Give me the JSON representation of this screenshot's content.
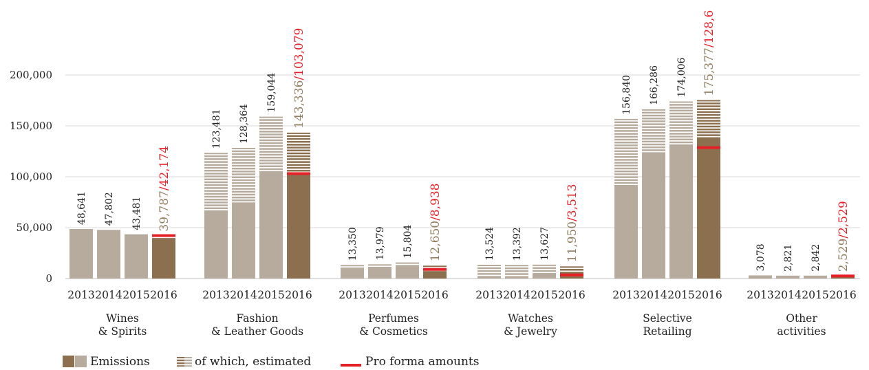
{
  "chart_data": {
    "type": "bar",
    "title": "",
    "xlabel": "",
    "ylabel": "",
    "ylim": [
      0,
      200000
    ],
    "yticks": [
      0,
      50000,
      100000,
      150000,
      200000
    ],
    "ytick_labels": [
      "0",
      "50,000",
      "100,000",
      "150,000",
      "200,000"
    ],
    "grid": true,
    "legend_position": "bottom-left",
    "years": [
      "2013",
      "2014",
      "2015",
      "2016"
    ],
    "groups": [
      {
        "name_lines": [
          "Wines",
          "& Spirits"
        ],
        "totals": [
          48641,
          47802,
          43481,
          39787
        ],
        "estimated": [
          0,
          0,
          0,
          0
        ],
        "labels": [
          "48,641",
          "47,802",
          "43,481"
        ],
        "label_2016_main": "39,787",
        "label_2016_proforma": "/42,174",
        "proforma_2016": 42174
      },
      {
        "name_lines": [
          "Fashion",
          "& Leather Goods"
        ],
        "totals": [
          123481,
          128364,
          159044,
          143336
        ],
        "estimated": [
          57000,
          54000,
          54000,
          39000
        ],
        "labels": [
          "123,481",
          "128,364",
          "159,044"
        ],
        "label_2016_main": "143,336",
        "label_2016_proforma": "/103,079",
        "proforma_2016": 103079
      },
      {
        "name_lines": [
          "Perfumes",
          "& Cosmetics"
        ],
        "totals": [
          13350,
          13979,
          15804,
          12650
        ],
        "estimated": [
          2500,
          3000,
          2000,
          5500
        ],
        "labels": [
          "13,350",
          "13,979",
          "15,804"
        ],
        "label_2016_main": "12,650",
        "label_2016_proforma": "/8,938",
        "proforma_2016": 8938
      },
      {
        "name_lines": [
          "Watches",
          "& Jewelry"
        ],
        "totals": [
          13524,
          13392,
          13627,
          11950
        ],
        "estimated": [
          10000,
          10000,
          9500,
          7000
        ],
        "labels": [
          "13,524",
          "13,392",
          "13,627"
        ],
        "label_2016_main": "11,950",
        "label_2016_proforma": "/3,513",
        "proforma_2016": 3513
      },
      {
        "name_lines": [
          "Selective",
          "Retailing"
        ],
        "totals": [
          156840,
          166286,
          174006,
          175377
        ],
        "estimated": [
          64000,
          43000,
          42000,
          36000
        ],
        "labels": [
          "156,840",
          "166,286",
          "174,006"
        ],
        "label_2016_main": "175,377",
        "label_2016_proforma": "/128,6",
        "proforma_2016": 128600
      },
      {
        "name_lines": [
          "Other",
          "activities"
        ],
        "totals": [
          3078,
          2821,
          2842,
          2529
        ],
        "estimated": [
          0,
          0,
          0,
          0
        ],
        "labels": [
          "3,078",
          "2,821",
          "2,842"
        ],
        "label_2016_main": "2,529",
        "label_2016_proforma": "/2,529",
        "proforma_2016": 2529
      }
    ],
    "legend": [
      {
        "key": "emissions",
        "label": "Emissions"
      },
      {
        "key": "estimated",
        "label": "of which, estimated"
      },
      {
        "key": "proforma",
        "label": "Pro forma amounts"
      }
    ]
  },
  "colors": {
    "bar_prior": "#b6ab9d",
    "bar_2016": "#8b6f4e",
    "label_2016": "#927d5f",
    "proforma": "#e52026",
    "grid": "#d9d9d9",
    "text": "#222222"
  }
}
